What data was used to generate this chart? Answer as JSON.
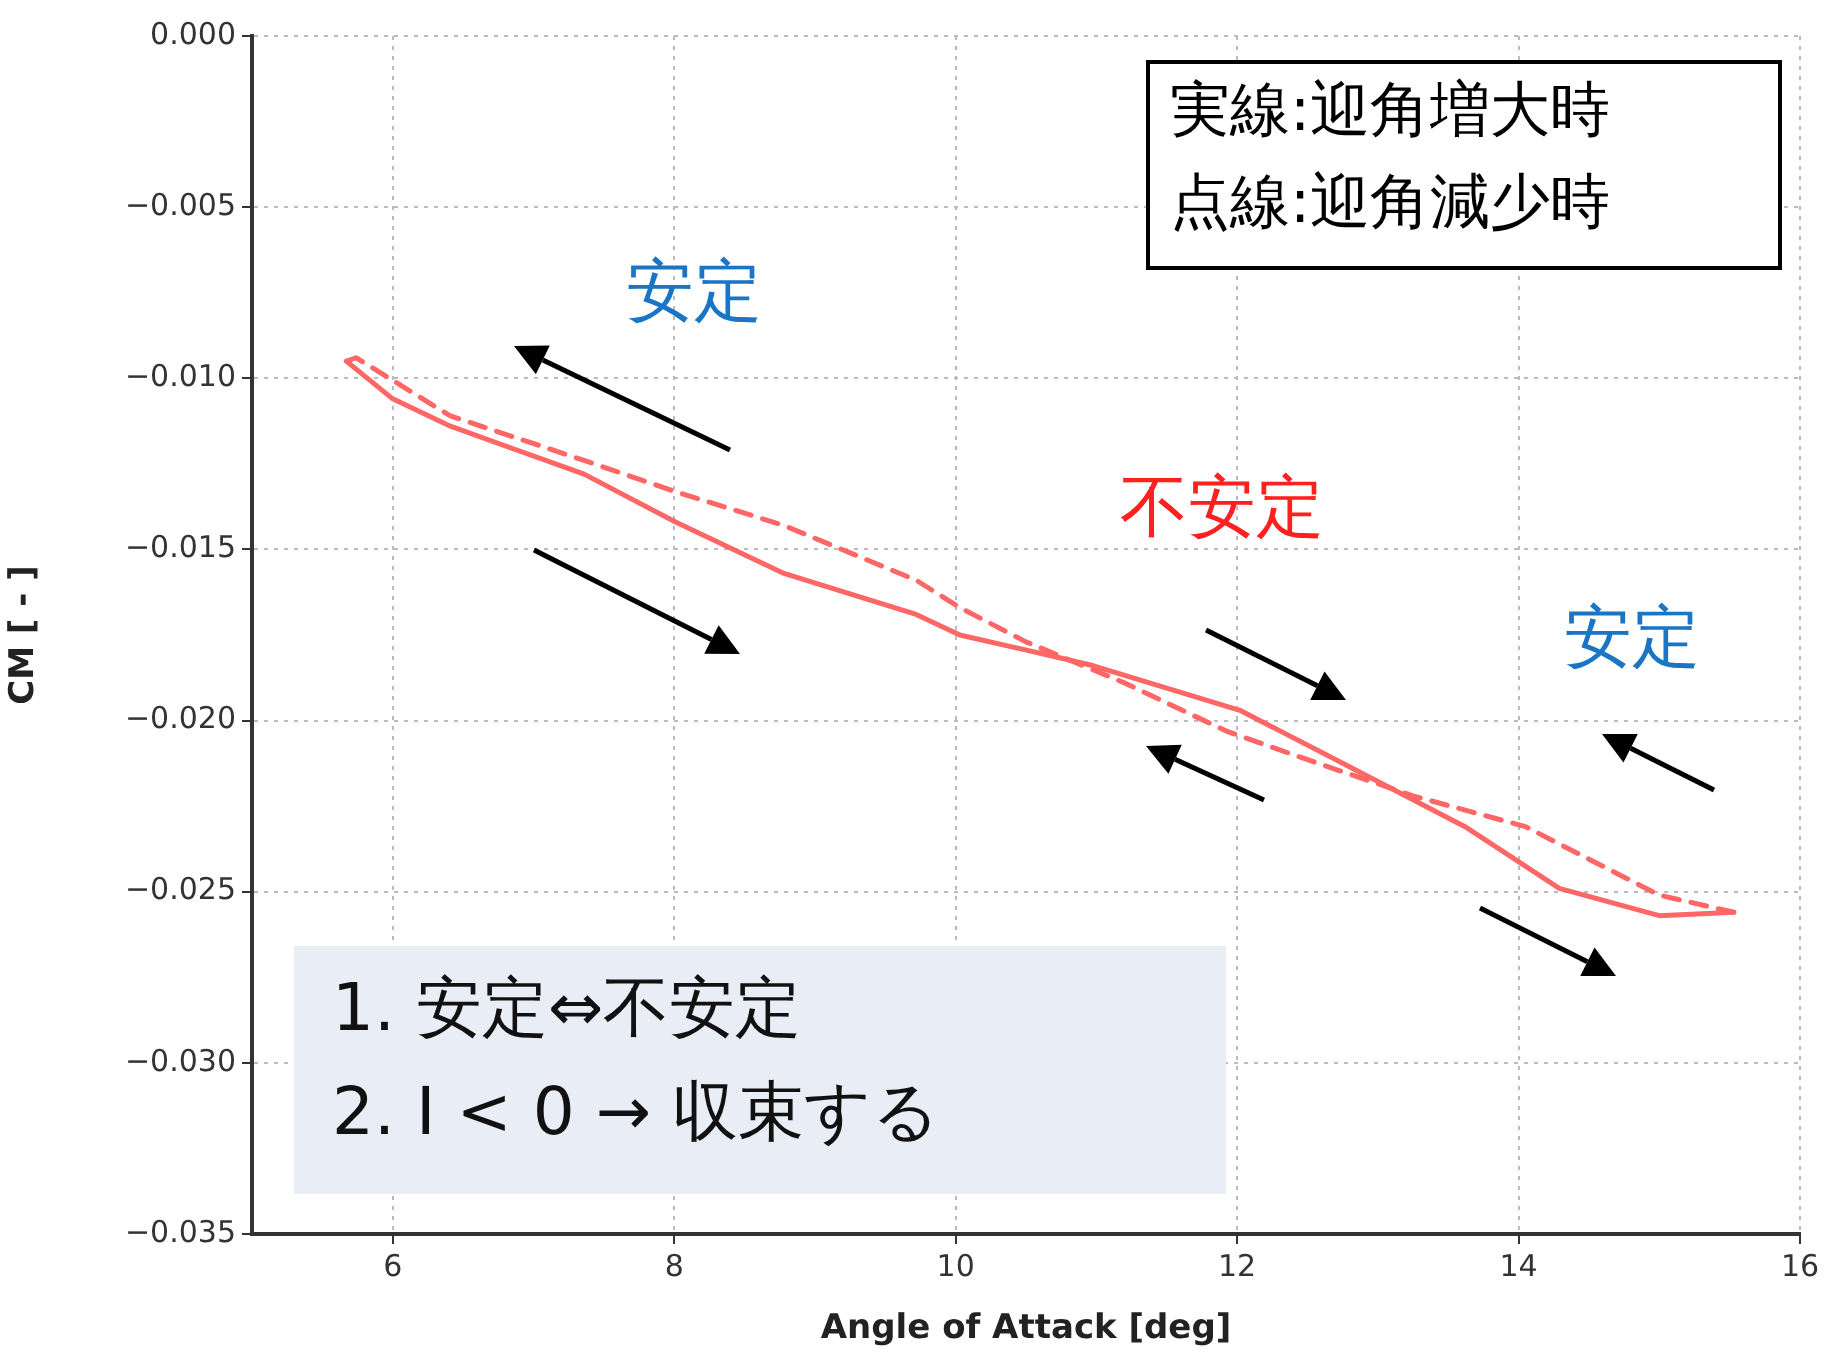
{
  "chart_data": {
    "type": "line",
    "xlabel": "Angle of Attack [deg]",
    "ylabel": "CM [ - ]",
    "xlim": [
      5,
      16
    ],
    "xticks": [
      6,
      8,
      10,
      12,
      14,
      16
    ],
    "ylim": [
      -0.035,
      0
    ],
    "yticks": [
      {
        "value": -0.035,
        "label": "−0.035"
      },
      {
        "value": -0.03,
        "label": "−0.030"
      },
      {
        "value": -0.025,
        "label": "−0.025"
      },
      {
        "value": -0.02,
        "label": "−0.020"
      },
      {
        "value": -0.015,
        "label": "−0.015"
      },
      {
        "value": -0.01,
        "label": "−0.010"
      },
      {
        "value": -0.005,
        "label": "−0.005"
      },
      {
        "value": 0,
        "label": "0.000"
      }
    ],
    "grid": true,
    "marker": "none",
    "legend": false,
    "series": [
      {
        "color": "#ff6666",
        "line_style": "solid",
        "x": [
          5.67,
          6.0,
          6.41,
          7.36,
          8.01,
          8.78,
          9.72,
          10.03,
          10.67,
          10.98,
          12.02,
          12.87,
          13.62,
          14.29,
          15.0,
          15.53
        ],
        "values": [
          -0.0095,
          -0.0106,
          -0.0114,
          -0.0128,
          -0.0142,
          -0.0157,
          -0.0169,
          -0.0175,
          -0.0181,
          -0.0184,
          -0.0197,
          -0.0215,
          -0.0231,
          -0.0249,
          -0.0257,
          -0.0256
        ]
      },
      {
        "color": "#ff6666",
        "line_style": "dashed",
        "x": [
          15.53,
          15.0,
          14.05,
          13.25,
          12.4,
          11.92,
          11.2,
          10.5,
          10.03,
          9.72,
          8.78,
          8.0,
          7.36,
          6.41,
          5.74,
          5.67
        ],
        "values": [
          -0.0256,
          -0.0251,
          -0.0231,
          -0.0222,
          -0.021,
          -0.0203,
          -0.0189,
          -0.0177,
          -0.0167,
          -0.0159,
          -0.0143,
          -0.0133,
          -0.0124,
          -0.0111,
          -0.0094,
          -0.0095
        ]
      }
    ],
    "annotations": [
      "実線:迎角増大時",
      "点線:迎角減少時",
      "安定",
      "不安定",
      "安定",
      "1.  安定⇔不安定",
      "2.  I < 0 → 収束する"
    ]
  }
}
